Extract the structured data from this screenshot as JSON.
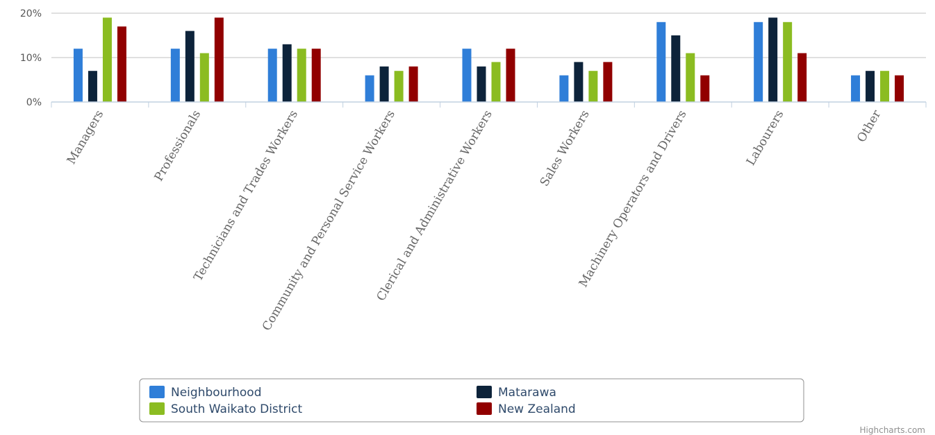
{
  "chart_data": {
    "type": "bar",
    "categories": [
      "Managers",
      "Professionals",
      "Technicians and Trades Workers",
      "Community and Personal Service Workers",
      "Clerical and Administrative Workers",
      "Sales Workers",
      "Machinery Operators and Drivers",
      "Labourers",
      "Other"
    ],
    "series": [
      {
        "name": "Neighbourhood",
        "color": "#2f7ed8",
        "values": [
          12,
          12,
          12,
          6,
          12,
          6,
          18,
          18,
          6
        ]
      },
      {
        "name": "Matarawa",
        "color": "#0d233a",
        "values": [
          7,
          16,
          13,
          8,
          8,
          9,
          15,
          19,
          7
        ]
      },
      {
        "name": "South Waikato District",
        "color": "#8bbc21",
        "values": [
          19,
          11,
          12,
          7,
          9,
          7,
          11,
          18,
          7
        ]
      },
      {
        "name": "New Zealand",
        "color": "#910000",
        "values": [
          17,
          19,
          12,
          8,
          12,
          9,
          6,
          11,
          6
        ]
      }
    ],
    "yticks": [
      "0%",
      "10%",
      "20%"
    ],
    "ylim": [
      0,
      20
    ],
    "grid": true,
    "legend_position": "bottom-center"
  },
  "credits": "Highcharts.com"
}
